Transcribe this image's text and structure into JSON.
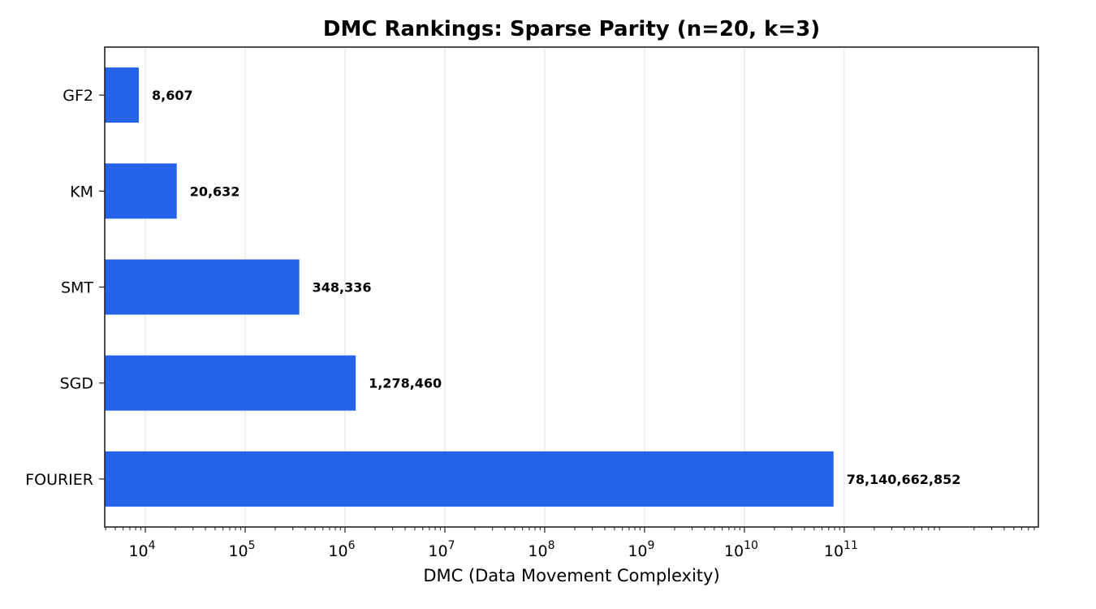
{
  "chart_data": {
    "type": "bar",
    "orientation": "horizontal",
    "title": "DMC Rankings: Sparse Parity (n=20, k=3)",
    "xlabel": "DMC (Data Movement Complexity)",
    "ylabel": "",
    "xscale": "log",
    "xlim": [
      3920,
      8800000000000
    ],
    "categories": [
      "GF2",
      "KM",
      "SMT",
      "SGD",
      "FOURIER"
    ],
    "values": [
      8607,
      20632,
      348336,
      1278460,
      78140662852
    ],
    "value_labels": [
      "8,607",
      "20,632",
      "348,336",
      "1,278,460",
      "78,140,662,852"
    ],
    "x_ticks": [
      {
        "exp": 4,
        "base": "10",
        "sup": "4"
      },
      {
        "exp": 5,
        "base": "10",
        "sup": "5"
      },
      {
        "exp": 6,
        "base": "10",
        "sup": "6"
      },
      {
        "exp": 7,
        "base": "10",
        "sup": "7"
      },
      {
        "exp": 8,
        "base": "10",
        "sup": "8"
      },
      {
        "exp": 9,
        "base": "10",
        "sup": "9"
      },
      {
        "exp": 10,
        "base": "10",
        "sup": "10"
      },
      {
        "exp": 11,
        "base": "10",
        "sup": "11"
      }
    ],
    "bar_color": "#2563eb",
    "grid": "x-major",
    "legend": null
  }
}
